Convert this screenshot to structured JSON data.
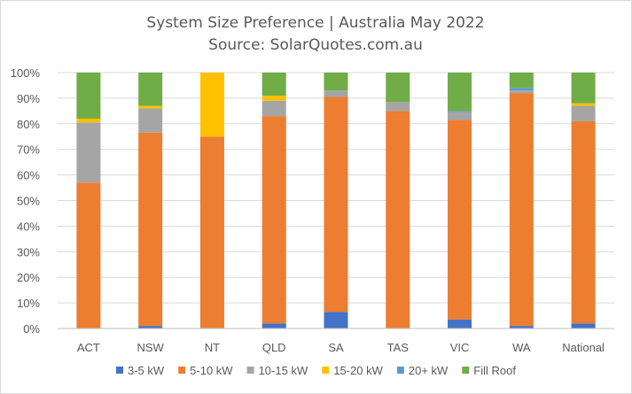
{
  "chart_data": {
    "type": "bar",
    "stacked": true,
    "title": "System Size Preference  | Australia May 2022",
    "subtitle": "Source: SolarQuotes.com.au",
    "xlabel": "",
    "ylabel": "",
    "ylim": [
      0,
      1
    ],
    "yticks": [
      "0%",
      "10%",
      "20%",
      "30%",
      "40%",
      "50%",
      "60%",
      "70%",
      "80%",
      "90%",
      "100%"
    ],
    "grid": true,
    "legend_position": "bottom",
    "categories": [
      "ACT",
      "NSW",
      "NT",
      "QLD",
      "SA",
      "TAS",
      "VIC",
      "WA",
      "National"
    ],
    "series": [
      {
        "name": "3-5 kW",
        "color": "#4472c4",
        "values": [
          0.0,
          0.01,
          0.0,
          0.02,
          0.065,
          0.0,
          0.035,
          0.01,
          0.02
        ]
      },
      {
        "name": "5-10 kW",
        "color": "#ed7d31",
        "values": [
          0.57,
          0.755,
          0.75,
          0.81,
          0.84,
          0.85,
          0.78,
          0.91,
          0.79
        ]
      },
      {
        "name": "10-15 kW",
        "color": "#a5a5a5",
        "values": [
          0.235,
          0.095,
          0.0,
          0.06,
          0.025,
          0.035,
          0.03,
          0.01,
          0.06
        ]
      },
      {
        "name": "15-20 kW",
        "color": "#ffc000",
        "values": [
          0.015,
          0.01,
          0.25,
          0.02,
          0.0,
          0.0,
          0.0,
          0.0,
          0.01
        ]
      },
      {
        "name": "20+ kW",
        "color": "#5b9bd5",
        "values": [
          0.0,
          0.0,
          0.0,
          0.0,
          0.0,
          0.0,
          0.005,
          0.01,
          0.0
        ]
      },
      {
        "name": "Fill Roof",
        "color": "#70ad47",
        "values": [
          0.18,
          0.13,
          0.0,
          0.09,
          0.07,
          0.115,
          0.15,
          0.06,
          0.12
        ]
      }
    ]
  },
  "colors": {
    "grid": "#d9d9d9",
    "text": "#595959",
    "axis": "#bfbfbf"
  }
}
